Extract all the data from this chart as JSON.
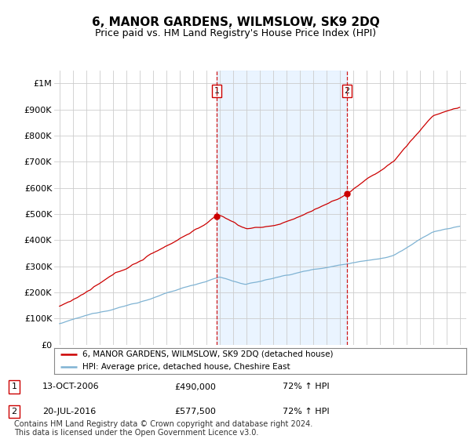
{
  "title": "6, MANOR GARDENS, WILMSLOW, SK9 2DQ",
  "subtitle": "Price paid vs. HM Land Registry's House Price Index (HPI)",
  "title_fontsize": 11,
  "subtitle_fontsize": 9,
  "legend_line1": "6, MANOR GARDENS, WILMSLOW, SK9 2DQ (detached house)",
  "legend_line2": "HPI: Average price, detached house, Cheshire East",
  "sale1_label": "1",
  "sale1_date": "13-OCT-2006",
  "sale1_price": "£490,000",
  "sale1_hpi": "72% ↑ HPI",
  "sale1_year": 2006.79,
  "sale1_value": 490000,
  "sale2_label": "2",
  "sale2_date": "20-JUL-2016",
  "sale2_price": "£577,500",
  "sale2_hpi": "72% ↑ HPI",
  "sale2_year": 2016.55,
  "sale2_value": 577500,
  "red_color": "#cc0000",
  "blue_color": "#7fb3d3",
  "dashed_color": "#cc0000",
  "background_color": "#ffffff",
  "grid_color": "#cccccc",
  "shade_color": "#ddeeff",
  "ylim": [
    0,
    1050000
  ],
  "yticks": [
    0,
    100000,
    200000,
    300000,
    400000,
    500000,
    600000,
    700000,
    800000,
    900000,
    1000000
  ],
  "ytick_labels": [
    "£0",
    "£100K",
    "£200K",
    "£300K",
    "£400K",
    "£500K",
    "£600K",
    "£700K",
    "£800K",
    "£900K",
    "£1M"
  ],
  "footer": "Contains HM Land Registry data © Crown copyright and database right 2024.\nThis data is licensed under the Open Government Licence v3.0.",
  "footer_fontsize": 7
}
